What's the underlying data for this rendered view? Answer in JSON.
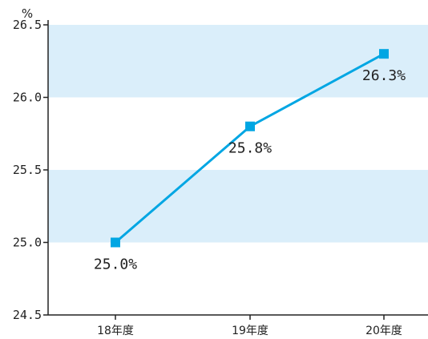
{
  "chart_data": {
    "type": "line",
    "title": "",
    "xlabel": "",
    "ylabel": "",
    "y_unit": "%",
    "categories": [
      "18年度",
      "19年度",
      "20年度"
    ],
    "series": [
      {
        "values": [
          25.0,
          25.8,
          26.3
        ],
        "labels": [
          "25.0%",
          "25.8%",
          "26.3%"
        ]
      }
    ],
    "ylim": [
      24.5,
      26.5
    ],
    "yticks": [
      "24.5",
      "25.0",
      "25.5",
      "26.0",
      "26.5"
    ],
    "bands": [
      [
        25.0,
        25.5
      ],
      [
        26.0,
        26.5
      ]
    ],
    "colors": {
      "line": "#00a6e3",
      "marker": "#00a6e3",
      "band": "#daeefa",
      "axis": "#222222"
    },
    "grid": false,
    "legend": "none"
  }
}
